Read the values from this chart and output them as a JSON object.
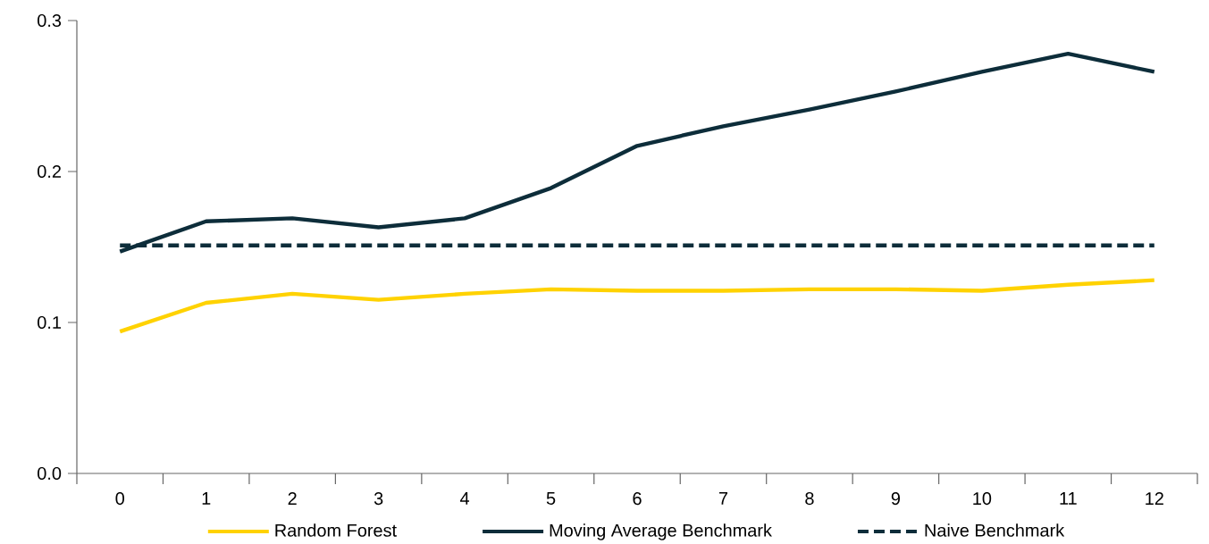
{
  "chart_data": {
    "type": "line",
    "categories": [
      "0",
      "1",
      "2",
      "3",
      "4",
      "5",
      "6",
      "7",
      "8",
      "9",
      "10",
      "11",
      "12"
    ],
    "series": [
      {
        "name": "Random Forest",
        "color": "#ffd200",
        "line_style": "solid",
        "values": [
          0.094,
          0.113,
          0.119,
          0.115,
          0.119,
          0.122,
          0.121,
          0.121,
          0.122,
          0.122,
          0.121,
          0.125,
          0.128
        ]
      },
      {
        "name": "Moving Average Benchmark",
        "color": "#0d2d3a",
        "line_style": "solid",
        "values": [
          0.147,
          0.167,
          0.169,
          0.163,
          0.169,
          0.189,
          0.217,
          0.23,
          0.241,
          0.253,
          0.266,
          0.278,
          0.266
        ]
      },
      {
        "name": "Naive Benchmark",
        "color": "#0d2d3a",
        "line_style": "dashed",
        "values": [
          0.151,
          0.151,
          0.151,
          0.151,
          0.151,
          0.151,
          0.151,
          0.151,
          0.151,
          0.151,
          0.151,
          0.151,
          0.151
        ]
      }
    ],
    "ylim": [
      0,
      0.3
    ],
    "yticks": [
      {
        "value": 0,
        "label": "0.0"
      },
      0.1,
      0.2,
      0.3
    ],
    "grid": false,
    "legend": "bottom",
    "marker": "none"
  }
}
